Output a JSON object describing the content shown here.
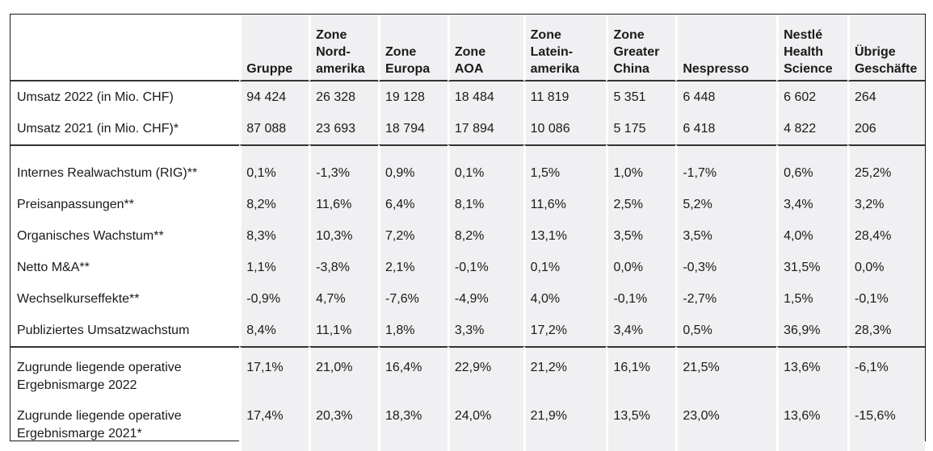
{
  "columns": [
    "",
    "Gruppe",
    "Zone Nord- amerika",
    "Zone Europa",
    "Zone AOA",
    "Zone Latein- amerika",
    "Zone Greater China",
    "Nespresso",
    "Nestlé Health Science",
    "Übrige Geschäfte"
  ],
  "header_lines": [
    [],
    [
      "Gruppe"
    ],
    [
      "Zone",
      "Nord-",
      "amerika"
    ],
    [
      "Zone",
      "Europa"
    ],
    [
      "Zone",
      "AOA"
    ],
    [
      "Zone",
      "Latein-",
      "amerika"
    ],
    [
      "Zone",
      "Greater",
      "China"
    ],
    [
      "Nespresso"
    ],
    [
      "Nestlé",
      "Health",
      "Science"
    ],
    [
      "Übrige",
      "Geschäfte"
    ]
  ],
  "sections": [
    {
      "rows": [
        {
          "label": "Umsatz 2022 (in Mio. CHF)",
          "values": [
            "94 424",
            "26 328",
            "19 128",
            "18 484",
            "11 819",
            "5 351",
            "6 448",
            "6 602",
            "264"
          ]
        },
        {
          "label": "Umsatz 2021 (in Mio. CHF)*",
          "values": [
            "87 088",
            "23 693",
            "18 794",
            "17 894",
            "10 086",
            "5 175",
            "6 418",
            "4 822",
            "206"
          ]
        }
      ]
    },
    {
      "rows": [
        {
          "label": "Internes Realwachstum (RIG)**",
          "values": [
            "0,1%",
            "-1,3%",
            "0,9%",
            "0,1%",
            "1,5%",
            "1,0%",
            "-1,7%",
            "0,6%",
            "25,2%"
          ]
        },
        {
          "label": "Preisanpassungen**",
          "values": [
            "8,2%",
            "11,6%",
            "6,4%",
            "8,1%",
            "11,6%",
            "2,5%",
            "5,2%",
            "3,4%",
            "3,2%"
          ]
        },
        {
          "label": "Organisches Wachstum**",
          "values": [
            "8,3%",
            "10,3%",
            "7,2%",
            "8,2%",
            "13,1%",
            "3,5%",
            "3,5%",
            "4,0%",
            "28,4%"
          ]
        },
        {
          "label": "Netto M&A**",
          "values": [
            "1,1%",
            "-3,8%",
            "2,1%",
            "-0,1%",
            "0,1%",
            "0,0%",
            "-0,3%",
            "31,5%",
            "0,0%"
          ]
        },
        {
          "label": "Wechselkurseffekte**",
          "values": [
            "-0,9%",
            "4,7%",
            "-7,6%",
            "-4,9%",
            "4,0%",
            "-0,1%",
            "-2,7%",
            "1,5%",
            "-0,1%"
          ]
        },
        {
          "label": "Publiziertes Umsatzwachstum",
          "values": [
            "8,4%",
            "11,1%",
            "1,8%",
            "3,3%",
            "17,2%",
            "3,4%",
            "0,5%",
            "36,9%",
            "28,3%"
          ]
        }
      ]
    },
    {
      "rows": [
        {
          "label_lines": [
            "Zugrunde liegende operative",
            "Ergebnismarge 2022"
          ],
          "values": [
            "17,1%",
            "21,0%",
            "16,4%",
            "22,9%",
            "21,2%",
            "16,1%",
            "21,5%",
            "13,6%",
            "-6,1%"
          ]
        },
        {
          "label_lines": [
            "Zugrunde liegende operative",
            "Ergebnismarge 2021*"
          ],
          "values": [
            "17,4%",
            "20,3%",
            "18,3%",
            "24,0%",
            "21,9%",
            "13,5%",
            "23,0%",
            "13,6%",
            "-15,6%"
          ]
        }
      ]
    }
  ]
}
